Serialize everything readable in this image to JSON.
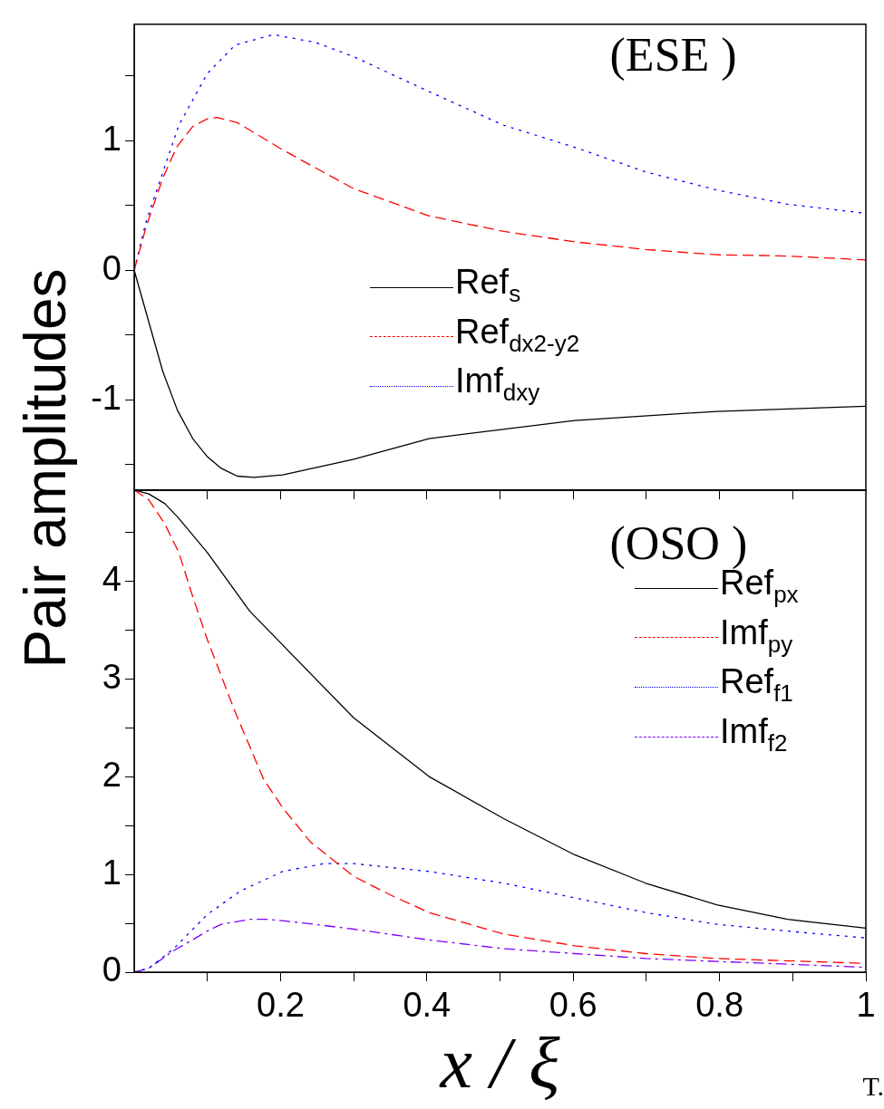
{
  "chart_data": [
    {
      "type": "line",
      "ylabel": "Pair amplitudes",
      "annotations": [
        "(ESE )"
      ],
      "legend": "center",
      "grid": false,
      "tick_labels": "y",
      "marker": "none",
      "xlim": [
        0,
        1
      ],
      "xticks": [
        {
          "value": 0.1,
          "label": null
        },
        {
          "value": 0.2,
          "label": null
        },
        {
          "value": 0.3,
          "label": null
        },
        {
          "value": 0.4,
          "label": null
        },
        {
          "value": 0.5,
          "label": null
        },
        {
          "value": 0.6,
          "label": null
        },
        {
          "value": 0.7,
          "label": null
        },
        {
          "value": 0.8,
          "label": null
        },
        {
          "value": 0.9,
          "label": null
        }
      ],
      "ylim": [
        -1.7,
        1.9
      ],
      "yticks": [
        {
          "value": -1.5,
          "label": null
        },
        -1,
        {
          "value": -0.5,
          "label": null
        },
        0,
        {
          "value": 0.5,
          "label": null
        },
        1,
        {
          "value": 1.5,
          "label": null
        }
      ],
      "series": [
        {
          "name": "Ref$_{s}$",
          "color": "#000000",
          "line_style": "solid",
          "x": [
            0,
            0.039,
            0.059,
            0.08,
            0.1,
            0.119,
            0.141,
            0.164,
            0.203,
            0.3,
            0.403,
            0.602,
            0.796,
            1
          ],
          "values": [
            0,
            -0.78,
            -1.08,
            -1.3,
            -1.44,
            -1.53,
            -1.59,
            -1.6,
            -1.58,
            -1.46,
            -1.3,
            -1.16,
            -1.09,
            -1.05
          ]
        },
        {
          "name": "Ref$_{dx2-y2}$",
          "color": "#ff0000",
          "line_style": "dashed",
          "x": [
            0,
            0.016,
            0.039,
            0.058,
            0.08,
            0.1,
            0.113,
            0.141,
            0.203,
            0.3,
            0.403,
            0.505,
            0.602,
            0.699,
            0.796,
            0.893,
            1
          ],
          "values": [
            0,
            0.33,
            0.71,
            0.95,
            1.11,
            1.17,
            1.18,
            1.14,
            0.93,
            0.63,
            0.42,
            0.3,
            0.22,
            0.16,
            0.12,
            0.11,
            0.08
          ]
        },
        {
          "name": "Imf$_{dxy}$",
          "color": "#0000ff",
          "line_style": "dotted",
          "x": [
            0,
            0.016,
            0.061,
            0.1,
            0.138,
            0.19,
            0.248,
            0.3,
            0.403,
            0.505,
            0.602,
            0.699,
            0.796,
            0.893,
            1
          ],
          "values": [
            0,
            0.37,
            1.12,
            1.52,
            1.74,
            1.82,
            1.76,
            1.65,
            1.38,
            1.12,
            0.95,
            0.76,
            0.62,
            0.51,
            0.44
          ]
        }
      ]
    },
    {
      "type": "line",
      "xlabel": "x / ξ",
      "annotations": [
        "(OSO )",
        "T."
      ],
      "legend": "top right",
      "grid": false,
      "marker": "none",
      "xlim": [
        0,
        1
      ],
      "xticks": [
        {
          "value": 0.1,
          "label": null
        },
        0.2,
        {
          "value": 0.3,
          "label": null
        },
        0.4,
        {
          "value": 0.5,
          "label": null
        },
        0.6,
        {
          "value": 0.7,
          "label": null
        },
        0.8,
        {
          "value": 0.9,
          "label": null
        },
        1
      ],
      "ylim": [
        0,
        4.93
      ],
      "yticks": [
        0,
        {
          "value": 0.5,
          "label": null
        },
        1,
        {
          "value": 1.5,
          "label": null
        },
        2,
        {
          "value": 2.5,
          "label": null
        },
        3,
        {
          "value": 3.5,
          "label": null
        },
        4,
        {
          "value": 4.5,
          "label": null
        }
      ],
      "series": [
        {
          "name": "Ref$_{px}$",
          "color": "#000000",
          "line_style": "solid",
          "x": [
            0,
            0.02,
            0.042,
            0.061,
            0.1,
            0.158,
            0.3,
            0.403,
            0.505,
            0.602,
            0.699,
            0.796,
            0.893,
            1
          ],
          "values": [
            4.93,
            4.89,
            4.79,
            4.64,
            4.29,
            3.69,
            2.6,
            2.0,
            1.57,
            1.2,
            0.91,
            0.69,
            0.54,
            0.45
          ]
        },
        {
          "name": "Imf$_{py}$",
          "color": "#ff0000",
          "line_style": "dashed",
          "x": [
            0,
            0.02,
            0.042,
            0.061,
            0.08,
            0.1,
            0.138,
            0.177,
            0.203,
            0.241,
            0.3,
            0.35,
            0.403,
            0.505,
            0.602,
            0.699,
            0.796,
            1
          ],
          "values": [
            4.93,
            4.83,
            4.58,
            4.29,
            3.84,
            3.4,
            2.66,
            1.97,
            1.68,
            1.33,
            0.98,
            0.79,
            0.61,
            0.39,
            0.27,
            0.19,
            0.14,
            0.09
          ]
        },
        {
          "name": "Ref$_{f1}$",
          "color": "#0000ff",
          "line_style": "dotted",
          "x": [
            0,
            0.02,
            0.054,
            0.1,
            0.145,
            0.203,
            0.26,
            0.3,
            0.403,
            0.505,
            0.602,
            0.699,
            0.796,
            0.893,
            1
          ],
          "values": [
            0,
            0.04,
            0.24,
            0.59,
            0.83,
            1.03,
            1.11,
            1.11,
            1.03,
            0.91,
            0.76,
            0.61,
            0.49,
            0.42,
            0.35
          ]
        },
        {
          "name": "Imf$_{f2}$",
          "color": "#7f00ff",
          "line_style": "dashdot",
          "x": [
            0,
            0.02,
            0.054,
            0.1,
            0.119,
            0.158,
            0.184,
            0.235,
            0.3,
            0.403,
            0.505,
            0.602,
            0.699,
            0.796,
            1
          ],
          "values": [
            0,
            0.04,
            0.22,
            0.42,
            0.49,
            0.54,
            0.54,
            0.5,
            0.44,
            0.33,
            0.24,
            0.19,
            0.14,
            0.11,
            0.05
          ]
        }
      ]
    }
  ]
}
